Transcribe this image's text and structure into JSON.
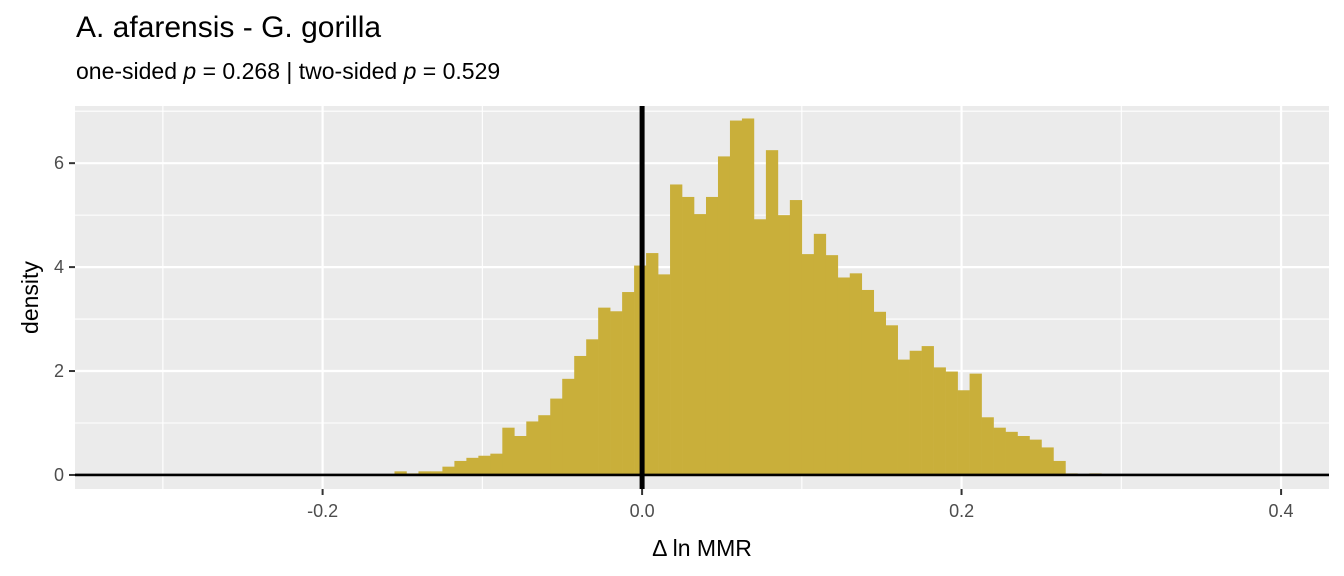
{
  "chart_data": {
    "type": "bar",
    "title": "A. afarensis - G. gorilla",
    "subtitle": {
      "one_sided_label": "one-sided ",
      "one_sided_value": " = 0.268",
      "separator": " | ",
      "two_sided_label": "two-sided ",
      "two_sided_value": " = 0.529",
      "p_symbol": "p"
    },
    "xlabel": "Δ ln MMR",
    "ylabel": "density",
    "xlim": [
      -0.355,
      0.43
    ],
    "ylim": [
      -0.27,
      7.1
    ],
    "x_ticks": [
      -0.2,
      0.0,
      0.2,
      0.4
    ],
    "x_tick_labels": [
      "-0.2",
      "0.0",
      "0.2",
      "0.4"
    ],
    "y_ticks": [
      0,
      2,
      4,
      6
    ],
    "y_tick_labels": [
      "0",
      "2",
      "4",
      "6"
    ],
    "grid": true,
    "bin_width": 0.0075,
    "bar_color": "#C9AF3A",
    "panel_color": "#EBEBEB",
    "reference_lines": {
      "vertical_x": 0.0,
      "horizontal_y": 0.0
    },
    "bins": [
      {
        "x0": -0.155,
        "density": 0.07
      },
      {
        "x0": -0.1475,
        "density": 0.03
      },
      {
        "x0": -0.14,
        "density": 0.07
      },
      {
        "x0": -0.1325,
        "density": 0.07
      },
      {
        "x0": -0.125,
        "density": 0.16
      },
      {
        "x0": -0.1175,
        "density": 0.27
      },
      {
        "x0": -0.11,
        "density": 0.33
      },
      {
        "x0": -0.1025,
        "density": 0.37
      },
      {
        "x0": -0.095,
        "density": 0.41
      },
      {
        "x0": -0.0875,
        "density": 0.91
      },
      {
        "x0": -0.08,
        "density": 0.75
      },
      {
        "x0": -0.0725,
        "density": 1.03
      },
      {
        "x0": -0.065,
        "density": 1.15
      },
      {
        "x0": -0.0575,
        "density": 1.47
      },
      {
        "x0": -0.05,
        "density": 1.85
      },
      {
        "x0": -0.0425,
        "density": 2.29
      },
      {
        "x0": -0.035,
        "density": 2.61
      },
      {
        "x0": -0.0275,
        "density": 3.22
      },
      {
        "x0": -0.02,
        "density": 3.15
      },
      {
        "x0": -0.0125,
        "density": 3.52
      },
      {
        "x0": -0.005,
        "density": 4.03
      },
      {
        "x0": 0.0025,
        "density": 4.27
      },
      {
        "x0": 0.01,
        "density": 3.86
      },
      {
        "x0": 0.0175,
        "density": 5.59
      },
      {
        "x0": 0.025,
        "density": 5.35
      },
      {
        "x0": 0.0325,
        "density": 5.02
      },
      {
        "x0": 0.04,
        "density": 5.35
      },
      {
        "x0": 0.0475,
        "density": 6.13
      },
      {
        "x0": 0.055,
        "density": 6.82
      },
      {
        "x0": 0.0625,
        "density": 6.86
      },
      {
        "x0": 0.07,
        "density": 4.92
      },
      {
        "x0": 0.0775,
        "density": 6.25
      },
      {
        "x0": 0.085,
        "density": 5.0
      },
      {
        "x0": 0.0925,
        "density": 5.29
      },
      {
        "x0": 0.1,
        "density": 4.25
      },
      {
        "x0": 0.1075,
        "density": 4.64
      },
      {
        "x0": 0.115,
        "density": 4.23
      },
      {
        "x0": 0.1225,
        "density": 3.8
      },
      {
        "x0": 0.13,
        "density": 3.88
      },
      {
        "x0": 0.1375,
        "density": 3.56
      },
      {
        "x0": 0.145,
        "density": 3.14
      },
      {
        "x0": 0.1525,
        "density": 2.88
      },
      {
        "x0": 0.16,
        "density": 2.22
      },
      {
        "x0": 0.1675,
        "density": 2.39
      },
      {
        "x0": 0.175,
        "density": 2.48
      },
      {
        "x0": 0.1825,
        "density": 2.07
      },
      {
        "x0": 0.19,
        "density": 1.99
      },
      {
        "x0": 0.1975,
        "density": 1.63
      },
      {
        "x0": 0.205,
        "density": 1.95
      },
      {
        "x0": 0.2125,
        "density": 1.11
      },
      {
        "x0": 0.22,
        "density": 0.91
      },
      {
        "x0": 0.2275,
        "density": 0.83
      },
      {
        "x0": 0.235,
        "density": 0.75
      },
      {
        "x0": 0.2425,
        "density": 0.68
      },
      {
        "x0": 0.25,
        "density": 0.53
      },
      {
        "x0": 0.2575,
        "density": 0.27
      },
      {
        "x0": 0.265,
        "density": 0.03
      },
      {
        "x0": 0.28,
        "density": 0.03
      }
    ]
  }
}
